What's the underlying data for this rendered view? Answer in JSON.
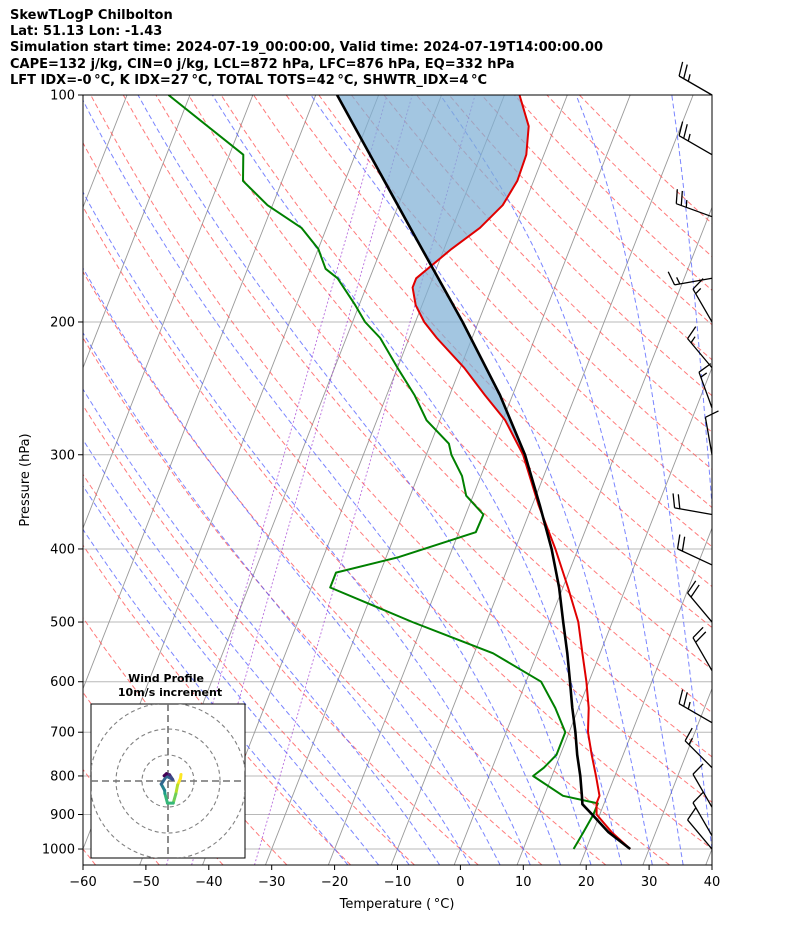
{
  "header": {
    "line1": "SkewTLogP Chilbolton",
    "line2": "Lat: 51.13   Lon: -1.43",
    "line3": "Simulation start time: 2024-07-19_00:00:00, Valid time: 2024-07-19T14:00:00.00",
    "line4": "CAPE=132 j/kg, CIN=0 j/kg, LCL=872 hPa, LFC=876 hPa, EQ=332 hPa",
    "line5": "LFT IDX=-0 °C, K IDX=27 °C, TOTAL TOTS=42 °C, SHWTR_IDX=4 °C"
  },
  "chart_data": {
    "type": "line",
    "title": "SkewTLogP Chilbolton",
    "xlabel": "Temperature ( °C)",
    "ylabel": "Pressure (hPa)",
    "xlim": [
      -60,
      40
    ],
    "ylim": [
      1050,
      100
    ],
    "skew_deg_per_decade": 47,
    "x_ticks": [
      -60,
      -50,
      -40,
      -30,
      -20,
      -10,
      0,
      10,
      20,
      30,
      40
    ],
    "y_ticks": [
      1000,
      900,
      800,
      700,
      600,
      500,
      400,
      300,
      200,
      100
    ],
    "colors": {
      "temperature": "#e00000",
      "dewpoint": "#008000",
      "parcel": "#000000",
      "cape_fill": "#7fb0d5",
      "dry_adiabat": "#ff4d4d",
      "moist_adiabat": "#4d5cff",
      "isotherm": "#999999",
      "mixing_ratio": "#9b30d0",
      "grid": "#b8b8b8"
    },
    "series": [
      {
        "name": "temperature",
        "points": [
          [
            1000,
            27.0
          ],
          [
            950,
            23.0
          ],
          [
            900,
            19.5
          ],
          [
            870,
            18.8
          ],
          [
            850,
            18.8
          ],
          [
            800,
            17.0
          ],
          [
            750,
            15.0
          ],
          [
            700,
            13.0
          ],
          [
            650,
            11.6
          ],
          [
            600,
            9.6
          ],
          [
            550,
            7.2
          ],
          [
            500,
            4.6
          ],
          [
            450,
            0.8
          ],
          [
            400,
            -3.6
          ],
          [
            350,
            -9.0
          ],
          [
            300,
            -14.6
          ],
          [
            270,
            -19.6
          ],
          [
            250,
            -24.4
          ],
          [
            230,
            -29.4
          ],
          [
            210,
            -35.6
          ],
          [
            200,
            -38.6
          ],
          [
            190,
            -41.0
          ],
          [
            180,
            -42.6
          ],
          [
            175,
            -42.6
          ],
          [
            160,
            -38.8
          ],
          [
            150,
            -35.6
          ],
          [
            140,
            -33.4
          ],
          [
            130,
            -32.6
          ],
          [
            120,
            -32.8
          ],
          [
            110,
            -34.2
          ],
          [
            100,
            -37.6
          ]
        ]
      },
      {
        "name": "dewpoint",
        "points": [
          [
            1000,
            18.0
          ],
          [
            950,
            18.5
          ],
          [
            900,
            19.0
          ],
          [
            870,
            19.0
          ],
          [
            850,
            13.0
          ],
          [
            800,
            7.0
          ],
          [
            780,
            8.2
          ],
          [
            750,
            9.4
          ],
          [
            700,
            9.4
          ],
          [
            650,
            6.3
          ],
          [
            600,
            2.4
          ],
          [
            550,
            -7.0
          ],
          [
            500,
            -21.8
          ],
          [
            450,
            -37.0
          ],
          [
            430,
            -37.0
          ],
          [
            410,
            -28.0
          ],
          [
            380,
            -17.3
          ],
          [
            360,
            -17.2
          ],
          [
            340,
            -21.1
          ],
          [
            320,
            -23.0
          ],
          [
            300,
            -26.0
          ],
          [
            290,
            -27.1
          ],
          [
            270,
            -32.1
          ],
          [
            250,
            -35.6
          ],
          [
            230,
            -40.0
          ],
          [
            210,
            -44.6
          ],
          [
            200,
            -48.0
          ],
          [
            190,
            -50.6
          ],
          [
            175,
            -55.1
          ],
          [
            170,
            -57.6
          ],
          [
            160,
            -60.0
          ],
          [
            150,
            -64.0
          ],
          [
            140,
            -70.8
          ],
          [
            130,
            -76.2
          ],
          [
            120,
            -77.8
          ],
          [
            100,
            -93.4
          ]
        ]
      },
      {
        "name": "parcel",
        "points": [
          [
            1000,
            27.0
          ],
          [
            950,
            22.5
          ],
          [
            900,
            18.8
          ],
          [
            872,
            16.6
          ],
          [
            850,
            16.0
          ],
          [
            800,
            14.5
          ],
          [
            750,
            12.7
          ],
          [
            700,
            11.0
          ],
          [
            650,
            9.0
          ],
          [
            600,
            7.0
          ],
          [
            550,
            4.8
          ],
          [
            500,
            2.2
          ],
          [
            450,
            -0.6
          ],
          [
            400,
            -4.2
          ],
          [
            350,
            -8.8
          ],
          [
            300,
            -14.3
          ],
          [
            250,
            -22.0
          ],
          [
            200,
            -32.5
          ],
          [
            150,
            -46.7
          ],
          [
            100,
            -66.6
          ]
        ]
      }
    ],
    "wind_barbs": [
      {
        "p": 100,
        "speed_kt": 25,
        "dir_deg": 300
      },
      {
        "p": 120,
        "speed_kt": 25,
        "dir_deg": 300
      },
      {
        "p": 145,
        "speed_kt": 25,
        "dir_deg": 290
      },
      {
        "p": 175,
        "speed_kt": 15,
        "dir_deg": 260
      },
      {
        "p": 200,
        "speed_kt": 15,
        "dir_deg": 330
      },
      {
        "p": 230,
        "speed_kt": 15,
        "dir_deg": 320
      },
      {
        "p": 260,
        "speed_kt": 15,
        "dir_deg": 340
      },
      {
        "p": 300,
        "speed_kt": 10,
        "dir_deg": 350
      },
      {
        "p": 360,
        "speed_kt": 20,
        "dir_deg": 280
      },
      {
        "p": 420,
        "speed_kt": 20,
        "dir_deg": 295
      },
      {
        "p": 500,
        "speed_kt": 20,
        "dir_deg": 320
      },
      {
        "p": 580,
        "speed_kt": 20,
        "dir_deg": 330
      },
      {
        "p": 680,
        "speed_kt": 25,
        "dir_deg": 300
      },
      {
        "p": 780,
        "speed_kt": 15,
        "dir_deg": 315
      },
      {
        "p": 880,
        "speed_kt": 10,
        "dir_deg": 330
      },
      {
        "p": 960,
        "speed_kt": 10,
        "dir_deg": 330
      },
      {
        "p": 1000,
        "speed_kt": 10,
        "dir_deg": 320
      }
    ],
    "hodograph": {
      "title": "Wind Profile",
      "subtitle": "10m/s increment",
      "rings_ms": [
        10,
        20,
        30
      ],
      "points_uv": [
        [
          5.0,
          2.5
        ],
        [
          4.8,
          1.0
        ],
        [
          3.7,
          -1.5
        ],
        [
          3.0,
          -5.0
        ],
        [
          2.0,
          -8.5
        ],
        [
          -0.2,
          -8.5
        ],
        [
          -1.2,
          -4.8
        ],
        [
          -1.3,
          -3.6
        ],
        [
          -2.6,
          -1.2
        ],
        [
          -0.6,
          1.8
        ],
        [
          1.8,
          0.6
        ],
        [
          0.6,
          2.4
        ],
        [
          -0.6,
          2.8
        ],
        [
          -1.5,
          2.0
        ]
      ]
    }
  }
}
